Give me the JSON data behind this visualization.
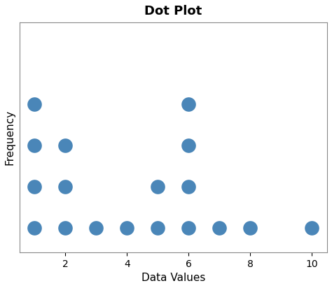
{
  "title": "Dot Plot",
  "xlabel": "Data Values",
  "ylabel": "Frequency",
  "dot_color": "#4a86b8",
  "dot_size": 220,
  "background_color": "#ffffff",
  "xlim": [
    0.5,
    10.5
  ],
  "ylim": [
    0.4,
    6
  ],
  "xticks": [
    2,
    4,
    6,
    8,
    10
  ],
  "dots": [
    [
      1,
      1
    ],
    [
      1,
      2
    ],
    [
      1,
      3
    ],
    [
      1,
      4
    ],
    [
      2,
      1
    ],
    [
      2,
      2
    ],
    [
      2,
      3
    ],
    [
      3,
      1
    ],
    [
      4,
      1
    ],
    [
      5,
      1
    ],
    [
      5,
      2
    ],
    [
      6,
      1
    ],
    [
      6,
      2
    ],
    [
      6,
      3
    ],
    [
      6,
      4
    ],
    [
      7,
      1
    ],
    [
      8,
      1
    ],
    [
      10,
      1
    ]
  ],
  "title_fontsize": 13,
  "label_fontsize": 11
}
